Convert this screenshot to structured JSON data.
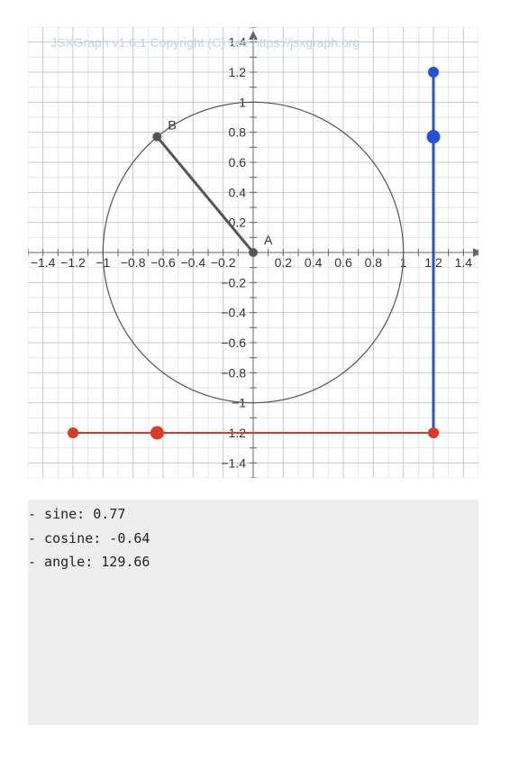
{
  "board": {
    "copyright": "JSXGraph v1.6.1 Copyright (C) see https://jsxgraph.org",
    "x_tick_labels": [
      "−1.4",
      "−1.2",
      "−1",
      "−0.8",
      "−0.6",
      "−0.4",
      "−0.2",
      "0.2",
      "0.4",
      "0.6",
      "0.8",
      "1",
      "1.2",
      "1.4"
    ],
    "y_tick_labels": [
      "1.4",
      "1.2",
      "1",
      "0.8",
      "0.6",
      "0.4",
      "0.2",
      "−0.2",
      "−0.4",
      "−0.6",
      "−0.8",
      "−1",
      "−1.2",
      "−1.4"
    ],
    "point_A": {
      "label": "A",
      "x": 0,
      "y": 0
    },
    "point_B": {
      "label": "B",
      "x": -0.64,
      "y": 0.77
    },
    "bounding_range": {
      "x": [
        -1.5,
        1.5
      ],
      "y": [
        -1.5,
        1.5
      ]
    },
    "circle_radius": 1,
    "sine_marker_x": 1.2,
    "cosine_marker_y": -1.2,
    "colors": {
      "sine": "#2650d8",
      "cosine": "#d93b26",
      "segment": "#555555",
      "circle": "#555555",
      "axis": "#666666"
    }
  },
  "output": {
    "lines": [
      "- sine: 0.77",
      "- cosine: -0.64",
      "- angle: 129.66"
    ]
  }
}
